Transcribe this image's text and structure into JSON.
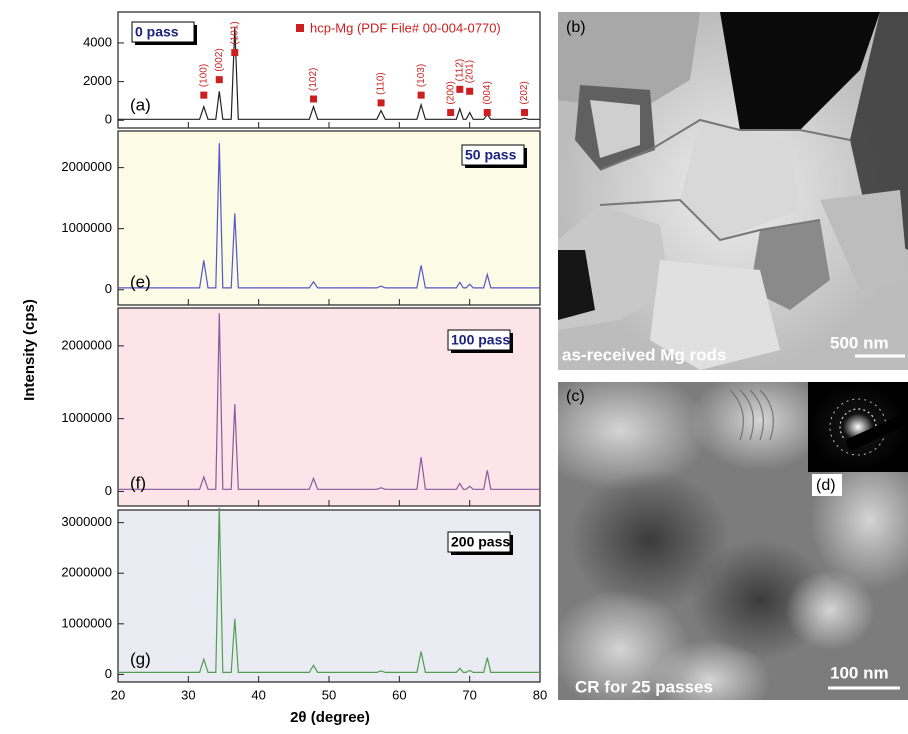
{
  "y_label": "Intensity (cps)",
  "x_label": "2θ (degree)",
  "chart_data": [
    {
      "type": "line",
      "tag": "(a)",
      "label": "0 pass",
      "background": "#ffffff",
      "x": [
        20,
        29,
        29.5,
        30,
        31.6,
        32.2,
        32.8,
        33.9,
        34.4,
        34.9,
        36.1,
        36.6,
        37.1,
        38,
        47.2,
        47.8,
        48.4,
        56.8,
        57.4,
        58,
        62.5,
        63.1,
        63.7,
        68.1,
        68.6,
        69.1,
        69.5,
        70,
        70.5,
        72,
        72.5,
        73,
        77.3,
        77.8,
        78.3,
        80
      ],
      "series": [
        {
          "type": "line",
          "color": "#222222",
          "values": [
            50,
            50,
            50,
            50,
            50,
            700,
            50,
            50,
            1500,
            50,
            50,
            4800,
            50,
            50,
            50,
            700,
            50,
            50,
            500,
            50,
            50,
            800,
            50,
            50,
            600,
            50,
            50,
            400,
            50,
            50,
            300,
            50,
            50,
            100,
            50,
            50
          ]
        },
        {
          "type": "scatter",
          "name": "hcp-Mg (PDF File# 00-004-0770)",
          "color": "#cc1f1f",
          "x": [
            32.2,
            34.4,
            36.6,
            47.8,
            57.4,
            63.1,
            67.3,
            68.6,
            70.0,
            72.5,
            77.8
          ],
          "values": [
            1300,
            2100,
            3500,
            1100,
            900,
            1300,
            400,
            1600,
            1500,
            400,
            400
          ],
          "point_labels": [
            "(100)",
            "(002)",
            "(101)",
            "(102)",
            "(110)",
            "(103)",
            "(200)",
            "(112)",
            "(201)",
            "(004)",
            "(202)"
          ]
        }
      ],
      "xlim": [
        20,
        80
      ],
      "xticks": [
        20,
        30,
        40,
        50,
        60,
        70,
        80
      ],
      "xtick_labels": false,
      "ylim": [
        -400,
        5600
      ],
      "yticks": [
        0,
        2000,
        4000
      ]
    },
    {
      "type": "line",
      "tag": "(e)",
      "label": "50 pass",
      "background": "#fbfbe6",
      "x": [
        20,
        29,
        29.5,
        30,
        31.6,
        32.2,
        32.8,
        33.9,
        34.4,
        34.9,
        36.1,
        36.6,
        37.1,
        38,
        47.2,
        47.8,
        48.4,
        56.8,
        57.4,
        58,
        62.5,
        63.1,
        63.7,
        68.1,
        68.6,
        69.1,
        69.5,
        70,
        70.5,
        72,
        72.5,
        73,
        77.3,
        77.8,
        78.3,
        80
      ],
      "series": [
        {
          "type": "line",
          "color": "#5555cc",
          "values": [
            30000,
            30000,
            30000,
            30000,
            30000,
            480000,
            30000,
            30000,
            2400000,
            30000,
            30000,
            1250000,
            30000,
            30000,
            30000,
            130000,
            30000,
            30000,
            60000,
            30000,
            30000,
            400000,
            30000,
            30000,
            120000,
            30000,
            30000,
            90000,
            30000,
            30000,
            250000,
            30000,
            30000,
            30000,
            30000,
            30000
          ]
        }
      ],
      "xlim": [
        20,
        80
      ],
      "xticks": [
        20,
        30,
        40,
        50,
        60,
        70,
        80
      ],
      "xtick_labels": false,
      "ylim": [
        -250000,
        2600000
      ],
      "yticks": [
        0,
        1000000,
        2000000
      ]
    },
    {
      "type": "line",
      "tag": "(f)",
      "label": "100 pass",
      "background": "#fce4e8",
      "x": [
        20,
        29,
        29.5,
        30,
        31.6,
        32.2,
        32.8,
        33.9,
        34.4,
        34.9,
        36.1,
        36.6,
        37.1,
        38,
        47.2,
        47.8,
        48.4,
        56.8,
        57.4,
        58,
        62.5,
        63.1,
        63.7,
        68.1,
        68.6,
        69.1,
        69.5,
        70,
        70.5,
        72,
        72.5,
        73,
        77.3,
        77.8,
        78.3,
        80
      ],
      "series": [
        {
          "type": "line",
          "color": "#8a5a9e",
          "values": [
            30000,
            30000,
            30000,
            30000,
            30000,
            200000,
            30000,
            30000,
            2450000,
            30000,
            30000,
            1200000,
            30000,
            30000,
            30000,
            180000,
            30000,
            30000,
            50000,
            30000,
            30000,
            470000,
            30000,
            30000,
            110000,
            30000,
            30000,
            70000,
            30000,
            30000,
            290000,
            30000,
            30000,
            30000,
            30000,
            30000
          ]
        }
      ],
      "xlim": [
        20,
        80
      ],
      "xticks": [
        20,
        30,
        40,
        50,
        60,
        70,
        80
      ],
      "xtick_labels": false,
      "ylim": [
        -200000,
        2520000
      ],
      "yticks": [
        0,
        1000000,
        2000000
      ]
    },
    {
      "type": "line",
      "tag": "(g)",
      "label": "200 pass",
      "background": "#ebebf4",
      "x": [
        20,
        29,
        29.5,
        30,
        31.6,
        32.2,
        32.8,
        33.9,
        34.4,
        34.9,
        36.1,
        36.6,
        37.1,
        38,
        47.2,
        47.8,
        48.4,
        56.8,
        57.4,
        58,
        62.5,
        63.1,
        63.7,
        68.1,
        68.6,
        69.1,
        69.5,
        70,
        70.5,
        72,
        72.5,
        73,
        77.3,
        77.8,
        78.3,
        80
      ],
      "series": [
        {
          "type": "line",
          "color": "#4f9f4f",
          "values": [
            40000,
            40000,
            40000,
            40000,
            40000,
            300000,
            40000,
            40000,
            3300000,
            40000,
            40000,
            1100000,
            40000,
            40000,
            40000,
            180000,
            40000,
            40000,
            70000,
            40000,
            40000,
            450000,
            40000,
            40000,
            120000,
            40000,
            40000,
            80000,
            40000,
            40000,
            330000,
            40000,
            40000,
            40000,
            40000,
            40000
          ]
        }
      ],
      "xlim": [
        20,
        80
      ],
      "xticks": [
        20,
        30,
        40,
        50,
        60,
        70,
        80
      ],
      "xtick_labels": true,
      "ylim": [
        -150000,
        3250000
      ],
      "yticks": [
        0,
        1000000,
        2000000,
        3000000
      ]
    }
  ],
  "panels": {
    "b": {
      "tag": "(b)",
      "caption": "as-received Mg rods",
      "scale": "500 nm"
    },
    "c": {
      "tag": "(c)",
      "caption": "CR for 25 passes",
      "scale": "100 nm"
    },
    "d": {
      "tag": "(d)"
    }
  }
}
